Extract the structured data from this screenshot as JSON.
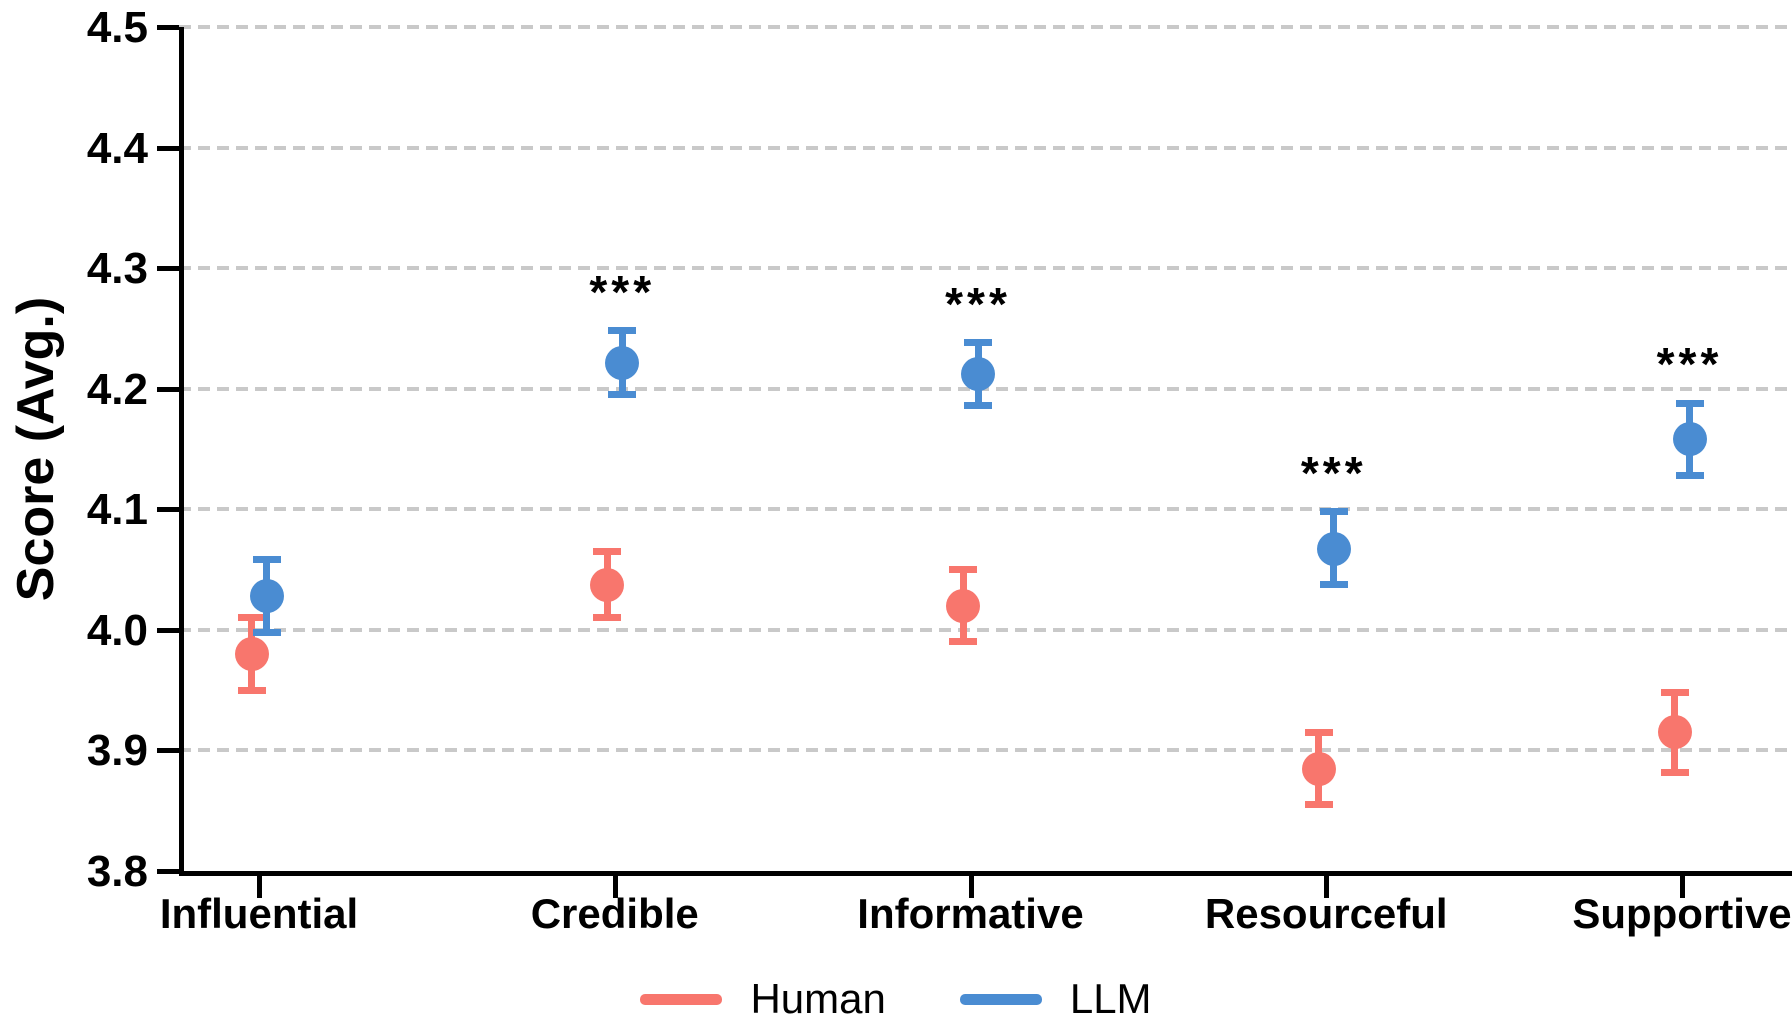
{
  "chart_data": {
    "type": "scatter",
    "title": "",
    "xlabel": "",
    "ylabel": "Score (Avg.)",
    "ylim": [
      3.8,
      4.5
    ],
    "yticks": [
      "3.8",
      "3.9",
      "4.0",
      "4.1",
      "4.2",
      "4.3",
      "4.4",
      "4.5"
    ],
    "grid": "horizontal-dashed",
    "gridline_color": "#c9c9c9",
    "categories": [
      "Influential",
      "Credible",
      "Informative",
      "Resourceful",
      "Supportive"
    ],
    "series": [
      {
        "name": "Human",
        "color": "#F8766D",
        "values": [
          3.98,
          4.037,
          4.02,
          3.885,
          3.915
        ],
        "err_low": [
          3.95,
          4.01,
          3.99,
          3.855,
          3.882
        ],
        "err_high": [
          4.01,
          4.065,
          4.05,
          3.915,
          3.948
        ]
      },
      {
        "name": "LLM",
        "color": "#4A8CD2",
        "values": [
          4.028,
          4.221,
          4.212,
          4.067,
          4.158
        ],
        "err_low": [
          3.998,
          4.195,
          4.186,
          4.038,
          4.128
        ],
        "err_high": [
          4.058,
          4.248,
          4.238,
          4.098,
          4.188
        ]
      }
    ],
    "significance": {
      "applies_to_series": "LLM",
      "labels": [
        "",
        "***",
        "***",
        "***",
        "***"
      ]
    },
    "legend_position": "bottom-center"
  },
  "legend": {
    "items": [
      {
        "label": "Human",
        "color": "#F8766D"
      },
      {
        "label": "LLM",
        "color": "#4A8CD2"
      }
    ]
  }
}
